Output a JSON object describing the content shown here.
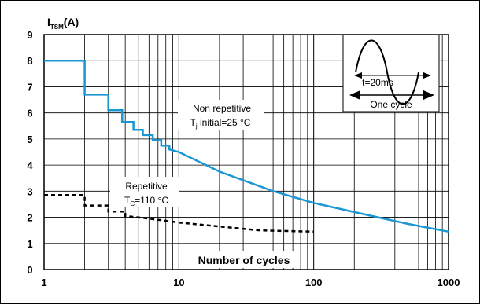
{
  "chart_data": {
    "type": "line",
    "x_scale": "log",
    "y_scale": "linear",
    "xlim": [
      1,
      1000
    ],
    "ylim": [
      0,
      9
    ],
    "grid": true,
    "ylabel_main": "I",
    "ylabel_sub": "TSM",
    "ylabel_unit": "(A)",
    "xlabel": "Number of cycles",
    "x_ticks": [
      {
        "value": 1,
        "label": "1"
      },
      {
        "value": 10,
        "label": "10"
      },
      {
        "value": 100,
        "label": "100"
      },
      {
        "value": 1000,
        "label": "1000"
      }
    ],
    "y_ticks": [
      {
        "value": 0,
        "label": "0"
      },
      {
        "value": 1,
        "label": "1"
      },
      {
        "value": 2,
        "label": "2"
      },
      {
        "value": 3,
        "label": "3"
      },
      {
        "value": 4,
        "label": "4"
      },
      {
        "value": 5,
        "label": "5"
      },
      {
        "value": 6,
        "label": "6"
      },
      {
        "value": 7,
        "label": "7"
      },
      {
        "value": 8,
        "label": "8"
      },
      {
        "value": 9,
        "label": "9"
      }
    ],
    "series": [
      {
        "key": "non_repetitive",
        "color": "#1a96d4",
        "style": "solid",
        "label_line1": "Non repetitive",
        "label_line2_pre": "T",
        "label_line2_sub": "j",
        "label_line2_post": " initial=25 °C",
        "points": [
          [
            1,
            8.0
          ],
          [
            2,
            8.0
          ],
          [
            2,
            6.7
          ],
          [
            3,
            6.7
          ],
          [
            3,
            6.1
          ],
          [
            3.8,
            6.1
          ],
          [
            3.8,
            5.65
          ],
          [
            4.6,
            5.65
          ],
          [
            4.6,
            5.35
          ],
          [
            5.4,
            5.35
          ],
          [
            5.4,
            5.15
          ],
          [
            6.4,
            5.15
          ],
          [
            6.4,
            4.95
          ],
          [
            7.4,
            4.95
          ],
          [
            7.4,
            4.75
          ],
          [
            8.5,
            4.75
          ],
          [
            8.5,
            4.6
          ],
          [
            10,
            4.5
          ],
          [
            20,
            3.75
          ],
          [
            50,
            3.0
          ],
          [
            100,
            2.55
          ],
          [
            200,
            2.2
          ],
          [
            300,
            2.0
          ],
          [
            500,
            1.75
          ],
          [
            1000,
            1.45
          ]
        ]
      },
      {
        "key": "repetitive",
        "color": "#000000",
        "style": "dashed",
        "label_line1": "Repetitive",
        "label_line2_pre": "T",
        "label_line2_sub": "C",
        "label_line2_post": "=110 °C",
        "points": [
          [
            1,
            2.85
          ],
          [
            2,
            2.85
          ],
          [
            2,
            2.45
          ],
          [
            3,
            2.45
          ],
          [
            3,
            2.22
          ],
          [
            4,
            2.22
          ],
          [
            4,
            2.05
          ],
          [
            6,
            1.95
          ],
          [
            10,
            1.8
          ],
          [
            20,
            1.65
          ],
          [
            40,
            1.5
          ],
          [
            100,
            1.45
          ]
        ]
      }
    ],
    "inset": {
      "period_label": "t=20ms",
      "cycle_label": "One cycle"
    }
  }
}
